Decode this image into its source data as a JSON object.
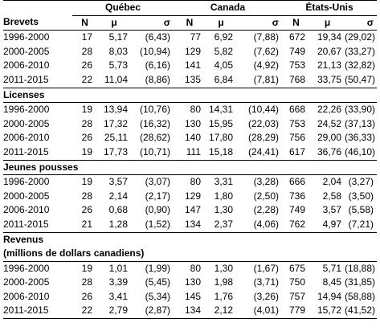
{
  "groups": [
    "Québec",
    "Canada",
    "États-Unis"
  ],
  "header": {
    "first": "Brevets",
    "n": "N",
    "mu": "μ",
    "sigma": "σ"
  },
  "sections": [
    {
      "title": "Brevets",
      "rows": [
        {
          "period": "1996-2000",
          "qc": [
            "17",
            "5,17",
            "(6,43)"
          ],
          "ca": [
            "77",
            "6,92",
            "(7,88)"
          ],
          "us": [
            "672",
            "19,34",
            "(29,02)"
          ]
        },
        {
          "period": "2000-2005",
          "qc": [
            "28",
            "8,03",
            "(10,94)"
          ],
          "ca": [
            "129",
            "5,82",
            "(7,62)"
          ],
          "us": [
            "749",
            "20,67",
            "(33,27)"
          ]
        },
        {
          "period": "2006-2010",
          "qc": [
            "26",
            "5,73",
            "(6,16)"
          ],
          "ca": [
            "141",
            "4,05",
            "(4,92)"
          ],
          "us": [
            "753",
            "21,13",
            "(32,82)"
          ]
        },
        {
          "period": "2011-2015",
          "qc": [
            "22",
            "11,04",
            "(8,86)"
          ],
          "ca": [
            "135",
            "6,84",
            "(7,81)"
          ],
          "us": [
            "768",
            "33,75",
            "(50,47)"
          ]
        }
      ]
    },
    {
      "title": "Licenses",
      "rows": [
        {
          "period": "1996-2000",
          "qc": [
            "19",
            "13,94",
            "(10,76)"
          ],
          "ca": [
            "80",
            "14,31",
            "(10,44)"
          ],
          "us": [
            "668",
            "22,26",
            "(33,90)"
          ]
        },
        {
          "period": "2000-2005",
          "qc": [
            "28",
            "17,32",
            "(16,32)"
          ],
          "ca": [
            "130",
            "15,95",
            "(22,03)"
          ],
          "us": [
            "753",
            "24,52",
            "(37,13)"
          ]
        },
        {
          "period": "2006-2010",
          "qc": [
            "26",
            "25,11",
            "(28,62)"
          ],
          "ca": [
            "140",
            "17,80",
            "(28,29)"
          ],
          "us": [
            "756",
            "29,00",
            "(36,33)"
          ]
        },
        {
          "period": "2011-2015",
          "qc": [
            "19",
            "17,73",
            "(10,71)"
          ],
          "ca": [
            "111",
            "15,18",
            "(24,41)"
          ],
          "us": [
            "617",
            "36,76",
            "(46,10)"
          ]
        }
      ]
    },
    {
      "title": "Jeunes pousses",
      "rows": [
        {
          "period": "1996-2000",
          "qc": [
            "19",
            "3,57",
            "(3,07)"
          ],
          "ca": [
            "80",
            "3,31",
            "(3,28)"
          ],
          "us": [
            "666",
            "2,04",
            "(3,27)"
          ]
        },
        {
          "period": "2000-2005",
          "qc": [
            "28",
            "2,14",
            "(2,17)"
          ],
          "ca": [
            "129",
            "1,80",
            "(2,50)"
          ],
          "us": [
            "736",
            "2,58",
            "(3,50)"
          ]
        },
        {
          "period": "2006-2010",
          "qc": [
            "26",
            "0,68",
            "(0,90)"
          ],
          "ca": [
            "147",
            "1,30",
            "(2,28)"
          ],
          "us": [
            "749",
            "3,57",
            "(5,58)"
          ]
        },
        {
          "period": "2011-2015",
          "qc": [
            "21",
            "1,28",
            "(1,52)"
          ],
          "ca": [
            "134",
            "2,37",
            "(4,06)"
          ],
          "us": [
            "762",
            "4,97",
            "(7,21)"
          ]
        }
      ]
    },
    {
      "title": "Revenus",
      "subtitle": "(millions de dollars canadiens)",
      "rows": [
        {
          "period": "1996-2000",
          "qc": [
            "19",
            "1,01",
            "(1,99)"
          ],
          "ca": [
            "80",
            "1,30",
            "(1,67)"
          ],
          "us": [
            "675",
            "5,71",
            "(18,88)"
          ]
        },
        {
          "period": "2000-2005",
          "qc": [
            "28",
            "3,39",
            "(5,45)"
          ],
          "ca": [
            "130",
            "1,98",
            "(3,71)"
          ],
          "us": [
            "750",
            "8,45",
            "(31,85)"
          ]
        },
        {
          "period": "2006-2010",
          "qc": [
            "26",
            "3,41",
            "(5,34)"
          ],
          "ca": [
            "145",
            "1,76",
            "(3,26)"
          ],
          "us": [
            "757",
            "14,94",
            "(58,88)"
          ]
        },
        {
          "period": "2011-2015",
          "qc": [
            "22",
            "2,79",
            "(2,87)"
          ],
          "ca": [
            "134",
            "2,12",
            "(4,01)"
          ],
          "us": [
            "779",
            "15,72",
            "(41,52)"
          ]
        }
      ]
    }
  ]
}
